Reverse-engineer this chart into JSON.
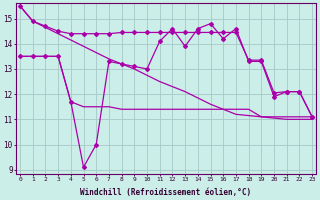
{
  "xlabel": "Windchill (Refroidissement éolien,°C)",
  "background_color": "#cceee8",
  "grid_color": "#aacccc",
  "line_color": "#aa00aa",
  "xlim_min": 0,
  "xlim_max": 23,
  "ylim_min": 9,
  "ylim_max": 15.6,
  "yticks": [
    9,
    10,
    11,
    12,
    13,
    14,
    15
  ],
  "xticks": [
    0,
    1,
    2,
    3,
    4,
    5,
    6,
    7,
    8,
    9,
    10,
    11,
    12,
    13,
    14,
    15,
    16,
    17,
    18,
    19,
    20,
    21,
    22,
    23
  ],
  "hours": [
    0,
    1,
    2,
    3,
    4,
    5,
    6,
    7,
    8,
    9,
    10,
    11,
    12,
    13,
    14,
    15,
    16,
    17,
    18,
    19,
    20,
    21,
    22,
    23
  ],
  "line_top": [
    15.5,
    14.9,
    14.7,
    14.5,
    14.4,
    14.4,
    14.4,
    14.4,
    14.45,
    14.45,
    14.45,
    14.45,
    14.45,
    14.45,
    14.45,
    14.45,
    14.45,
    14.45,
    13.35,
    13.35,
    12.05,
    12.1,
    12.1,
    11.1
  ],
  "line_diag": [
    15.5,
    14.9,
    14.65,
    14.4,
    14.15,
    13.9,
    13.65,
    13.4,
    13.2,
    13.0,
    12.75,
    12.5,
    12.3,
    12.1,
    11.85,
    11.6,
    11.4,
    11.2,
    11.15,
    11.1,
    11.05,
    11.0,
    11.0,
    11.0
  ],
  "line_mid": [
    13.5,
    13.5,
    13.5,
    13.5,
    11.7,
    9.1,
    10.0,
    13.3,
    13.2,
    13.1,
    13.0,
    14.1,
    14.6,
    13.9,
    14.6,
    14.8,
    14.2,
    14.6,
    13.3,
    13.3,
    11.9,
    12.1,
    12.1,
    11.1
  ],
  "line_bot": [
    13.5,
    13.5,
    13.5,
    13.5,
    11.7,
    11.5,
    11.5,
    11.5,
    11.4,
    11.4,
    11.4,
    11.4,
    11.4,
    11.4,
    11.4,
    11.4,
    11.4,
    11.4,
    11.4,
    11.1,
    11.1,
    11.1,
    11.1,
    11.1
  ]
}
